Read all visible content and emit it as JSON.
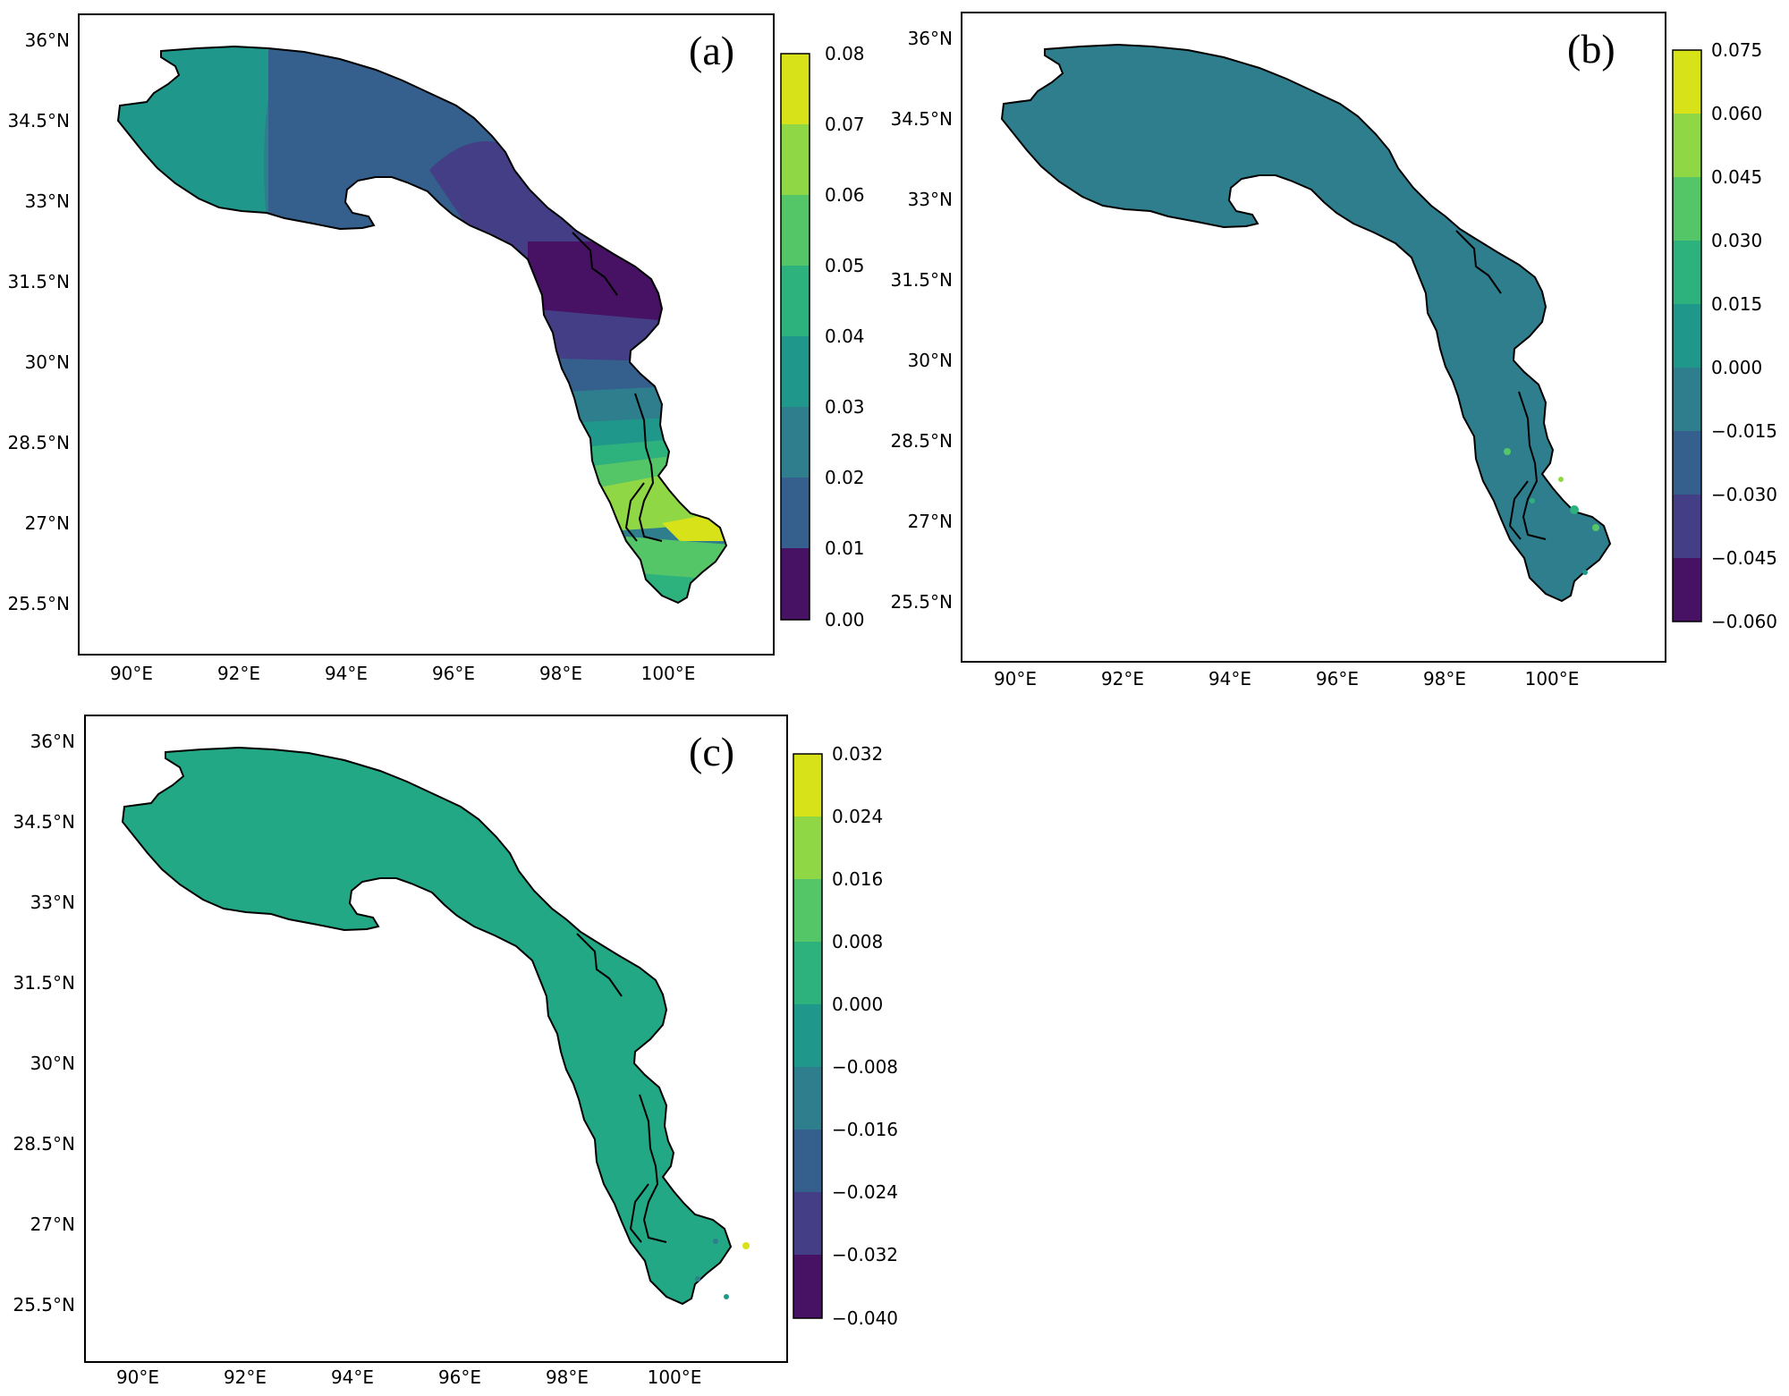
{
  "panels": [
    {
      "label": "(a)",
      "lat_ticks": [
        "36°N",
        "34.5°N",
        "33°N",
        "31.5°N",
        "30°N",
        "28.5°N",
        "27°N",
        "25.5°N"
      ],
      "lon_ticks": [
        "90°E",
        "92°E",
        "94°E",
        "96°E",
        "98°E",
        "100°E"
      ],
      "colorbar_ticks": [
        "0.08",
        "0.07",
        "0.06",
        "0.05",
        "0.04",
        "0.03",
        "0.02",
        "0.01",
        "0.00"
      ],
      "colorbar_colors": [
        "#d7e219",
        "#8fd744",
        "#55c667",
        "#2db27d",
        "#1f988b",
        "#2e7e8e",
        "#355f8d",
        "#433e85",
        "#471164"
      ]
    },
    {
      "label": "(b)",
      "lat_ticks": [
        "36°N",
        "34.5°N",
        "33°N",
        "31.5°N",
        "30°N",
        "28.5°N",
        "27°N",
        "25.5°N"
      ],
      "lon_ticks": [
        "90°E",
        "92°E",
        "94°E",
        "96°E",
        "98°E",
        "100°E"
      ],
      "colorbar_ticks": [
        "0.075",
        "0.060",
        "0.045",
        "0.030",
        "0.015",
        "0.000",
        "−0.015",
        "−0.030",
        "−0.045",
        "−0.060"
      ],
      "colorbar_colors": [
        "#d7e219",
        "#8fd744",
        "#55c667",
        "#2db27d",
        "#1f988b",
        "#2e7e8e",
        "#355f8d",
        "#433e85",
        "#471164"
      ]
    },
    {
      "label": "(c)",
      "lat_ticks": [
        "36°N",
        "34.5°N",
        "33°N",
        "31.5°N",
        "30°N",
        "28.5°N",
        "27°N",
        "25.5°N"
      ],
      "lon_ticks": [
        "90°E",
        "92°E",
        "94°E",
        "96°E",
        "98°E",
        "100°E"
      ],
      "colorbar_ticks": [
        "0.032",
        "0.024",
        "0.016",
        "0.008",
        "0.000",
        "−0.008",
        "−0.016",
        "−0.024",
        "−0.032",
        "−0.040"
      ],
      "colorbar_colors": [
        "#d7e219",
        "#8fd744",
        "#55c667",
        "#2db27d",
        "#1f988b",
        "#2e7e8e",
        "#355f8d",
        "#433e85",
        "#471164"
      ]
    }
  ],
  "colors": {
    "a_bands": [
      "#1f988b",
      "#2e7e8e",
      "#355f8d",
      "#433e85",
      "#471164",
      "#433e85",
      "#355f8d",
      "#2e7e8e",
      "#1f988b",
      "#2db27d",
      "#55c667",
      "#8fd744",
      "#d7e219"
    ],
    "b_fill": "#2e7e8e",
    "c_fill": "#22a884",
    "outline": "#000000"
  }
}
